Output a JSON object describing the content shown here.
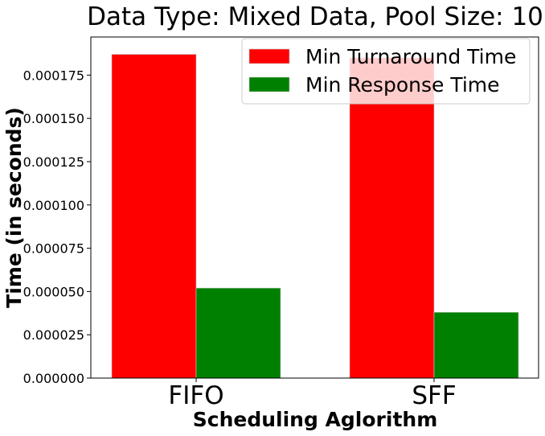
{
  "chart_data": {
    "type": "bar",
    "title": "Data Type: Mixed Data, Pool Size: 10",
    "xlabel": "Scheduling Aglorithm",
    "ylabel": "Time (in seconds)",
    "categories": [
      "FIFO",
      "SFF"
    ],
    "series": [
      {
        "name": "Min Turnaround Time",
        "color": "#ff0000",
        "values": [
          0.000187,
          0.000185
        ]
      },
      {
        "name": "Min Response Time",
        "color": "#008000",
        "values": [
          5.2e-05,
          3.8e-05
        ]
      }
    ],
    "ylim": [
      0,
      0.000197
    ],
    "yticks": [
      0,
      2.5e-05,
      5e-05,
      7.5e-05,
      0.0001,
      0.000125,
      0.00015,
      0.000175
    ],
    "ytick_labels": [
      "0.000000",
      "0.000025",
      "0.000050",
      "0.000075",
      "0.000100",
      "0.000125",
      "0.000150",
      "0.000175"
    ],
    "grid": false,
    "legend": "top-right"
  }
}
